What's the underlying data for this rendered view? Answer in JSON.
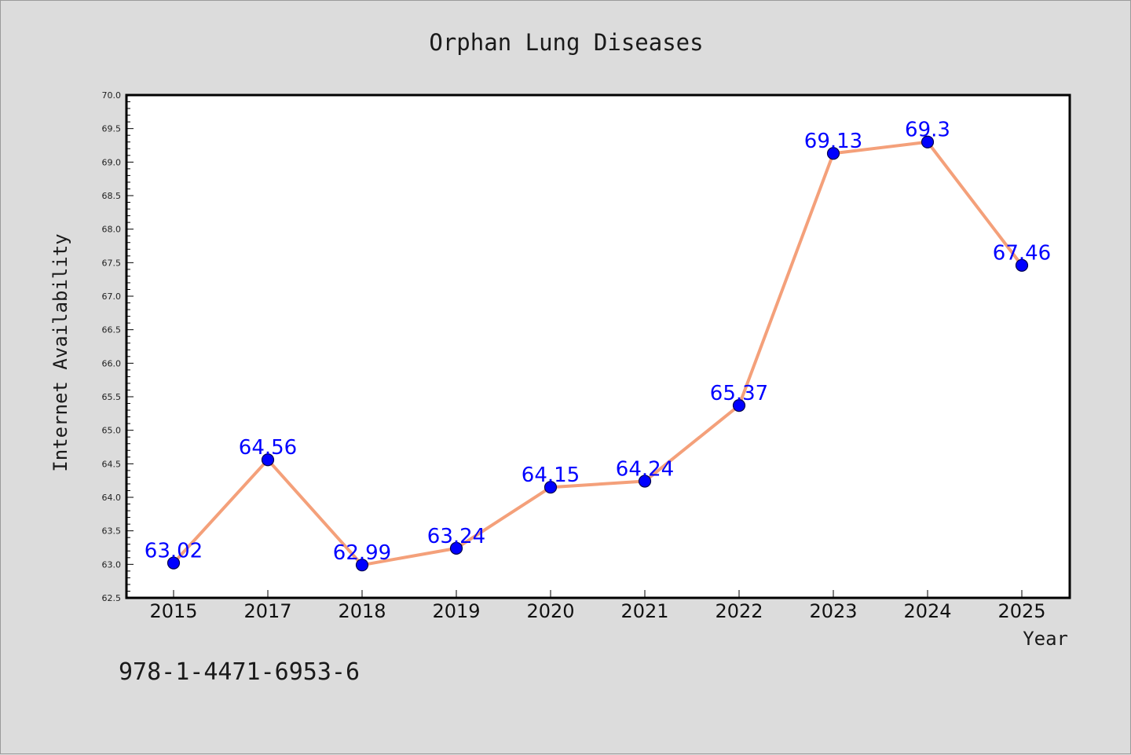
{
  "chart_data": {
    "type": "line",
    "title": "Orphan Lung Diseases",
    "xlabel": "Year",
    "ylabel": "Internet Availability",
    "categories": [
      "2015",
      "2017",
      "2018",
      "2019",
      "2020",
      "2021",
      "2022",
      "2023",
      "2024",
      "2025"
    ],
    "series": [
      {
        "values": [
          63.02,
          64.56,
          62.99,
          63.24,
          64.15,
          64.24,
          65.37,
          69.13,
          69.3,
          67.46
        ],
        "data_labels": [
          "63.02",
          "64.56",
          "62.99",
          "63.24",
          "64.15",
          "64.24",
          "65.37",
          "69.13",
          "69.3",
          "67.46"
        ],
        "line_color": "#f4a07a",
        "marker_color": "#0000ff"
      }
    ],
    "ylim": [
      62.5,
      70.0
    ],
    "yticks": [
      "62.5",
      "63.0",
      "63.5",
      "64.0",
      "64.5",
      "65.0",
      "65.5",
      "66.0",
      "66.5",
      "67.0",
      "67.5",
      "68.0",
      "68.5",
      "69.0",
      "69.5",
      "70.0"
    ],
    "grid": false,
    "legend": "none"
  },
  "footer_text": "978-1-4471-6953-6",
  "colors": {
    "background": "#dcdcdc",
    "plot_background": "#ffffff",
    "line": "#f4a07a",
    "marker": "#0000ff",
    "data_label": "#0000ff"
  }
}
